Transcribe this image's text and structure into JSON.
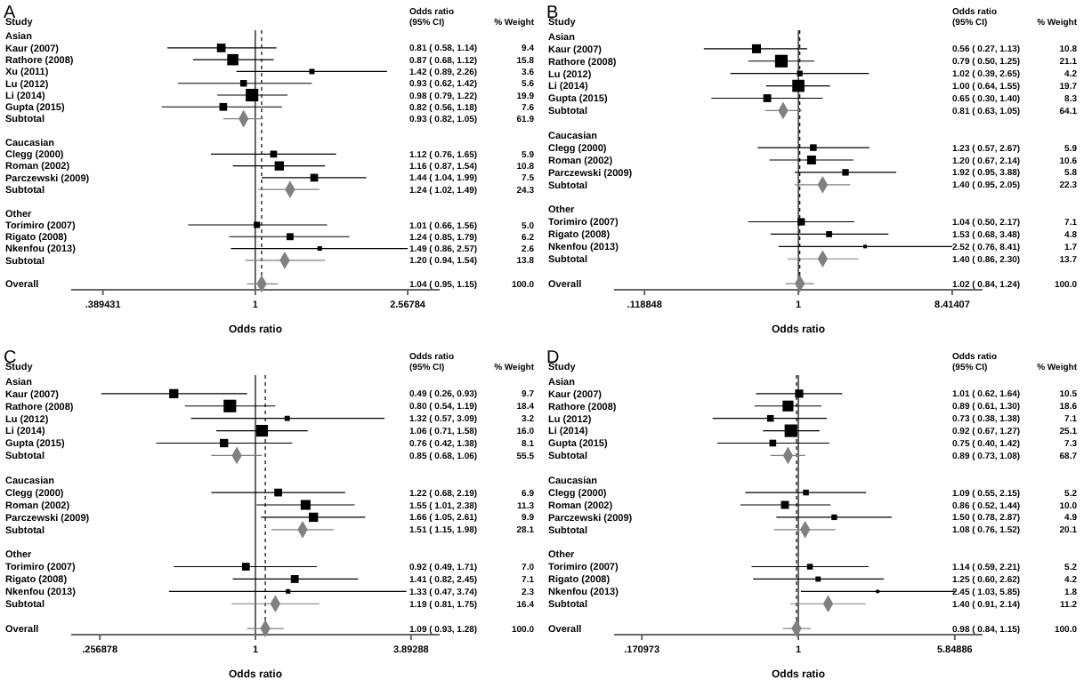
{
  "chart_data": [
    {
      "type": "bubble",
      "title": "A",
      "ylabel": "Study",
      "xlabel": "Odds ratio",
      "orientation": "horizontal",
      "log": "x",
      "xlim": [
        0.32,
        3.13
      ],
      "xticks": [
        {
          "value": 0.389431,
          "label": ".389431"
        },
        {
          "value": 1,
          "label": "1"
        },
        {
          "value": 2.56784,
          "label": "2.56784"
        }
      ],
      "annotations": [
        "Odds ratio",
        "(95% CI)",
        "% Weight"
      ],
      "ref_lines": [
        {
          "axis": "x",
          "value": 1,
          "line_style": "solid",
          "color": "#000000"
        },
        {
          "axis": "x",
          "value": 1.04,
          "line_style": "dashed",
          "color": "#000000"
        }
      ],
      "categories": [
        "Asian",
        "Kaur (2007)",
        "Rathore (2008)",
        "Xu (2011)",
        "Lu (2012)",
        "Li (2014)",
        "Gupta (2015)",
        "Subtotal",
        null,
        "Caucasian",
        "Clegg (2000)",
        "Roman (2002)",
        "Parczewski (2009)",
        "Subtotal",
        null,
        "Other",
        "Torimiro (2007)",
        "Rigato (2008)",
        "Nkenfou (2013)",
        "Subtotal",
        null,
        "Overall"
      ],
      "series": [
        {
          "marker": "square",
          "color": "#000000",
          "values": [
            null,
            0.81,
            0.87,
            1.42,
            0.93,
            0.98,
            0.82,
            null,
            null,
            null,
            1.12,
            1.16,
            1.44,
            null,
            null,
            null,
            1.01,
            1.24,
            1.49,
            null,
            null,
            null
          ],
          "errors": [
            null,
            [
              0.58,
              1.14
            ],
            [
              0.68,
              1.12
            ],
            [
              0.89,
              2.26
            ],
            [
              0.62,
              1.42
            ],
            [
              0.79,
              1.22
            ],
            [
              0.56,
              1.18
            ],
            null,
            null,
            null,
            [
              0.76,
              1.65
            ],
            [
              0.87,
              1.54
            ],
            [
              1.04,
              1.99
            ],
            null,
            null,
            null,
            [
              0.66,
              1.56
            ],
            [
              0.85,
              1.79
            ],
            [
              0.86,
              2.57
            ],
            null,
            null,
            null
          ],
          "sizes": [
            null,
            0.47,
            0.79,
            0.18,
            0.28,
            1,
            0.38,
            null,
            null,
            null,
            0.3,
            0.54,
            0.38,
            null,
            null,
            null,
            0.25,
            0.31,
            0.13,
            null,
            null,
            null
          ],
          "value_labels": [
            null,
            "0.81 ( 0.58, 1.14) 9.4",
            "0.87 ( 0.68, 1.12) 15.8",
            "1.42 ( 0.89, 2.26) 3.6",
            "0.93 ( 0.62, 1.42) 5.6",
            "0.98 ( 0.79, 1.22) 19.9",
            "0.82 ( 0.56, 1.18) 7.6",
            null,
            null,
            null,
            "1.12 ( 0.76, 1.65) 5.9",
            "1.16 ( 0.87, 1.54) 10.8",
            "1.44 ( 1.04, 1.99) 7.5",
            null,
            null,
            null,
            "1.01 ( 0.66, 1.56) 5.0",
            "1.24 ( 0.85, 1.79) 6.2",
            "1.49 ( 0.86, 2.57) 2.6",
            null,
            null,
            null
          ]
        },
        {
          "type": "scatter",
          "marker": "diamond",
          "color": "#808080",
          "values": [
            null,
            null,
            null,
            null,
            null,
            null,
            null,
            0.93,
            null,
            null,
            null,
            null,
            null,
            1.24,
            null,
            null,
            null,
            null,
            null,
            1.2,
            null,
            1.04
          ],
          "errors": [
            null,
            null,
            null,
            null,
            null,
            null,
            null,
            [
              0.82,
              1.05
            ],
            null,
            null,
            null,
            null,
            null,
            [
              1.02,
              1.49
            ],
            null,
            null,
            null,
            null,
            null,
            [
              0.94,
              1.54
            ],
            null,
            [
              0.95,
              1.15
            ]
          ],
          "value_labels": [
            null,
            null,
            null,
            null,
            null,
            null,
            null,
            "0.93 ( 0.82, 1.05) 61.9",
            null,
            null,
            null,
            null,
            null,
            "1.24 ( 1.02, 1.49) 24.3",
            null,
            null,
            null,
            null,
            null,
            "1.20 ( 0.94, 1.54) 13.8",
            null,
            "1.04 ( 0.95, 1.15) 100.0"
          ]
        }
      ]
    },
    {
      "type": "bubble",
      "title": "B",
      "ylabel": "Study",
      "xlabel": "Odds ratio",
      "orientation": "horizontal",
      "log": "x",
      "xlim": [
        0.078,
        12.8
      ],
      "xticks": [
        {
          "value": 0.118848,
          "label": ".118848"
        },
        {
          "value": 1,
          "label": "1"
        },
        {
          "value": 8.41407,
          "label": "8.41407"
        }
      ],
      "annotations": [
        "Odds ratio",
        "(95% CI)",
        "% Weight"
      ],
      "ref_lines": [
        {
          "axis": "x",
          "value": 1,
          "line_style": "solid",
          "color": "#000000"
        },
        {
          "axis": "x",
          "value": 1.02,
          "line_style": "dashed",
          "color": "#000000"
        }
      ],
      "categories": [
        "Asian",
        "Kaur (2007)",
        "Rathore (2008)",
        "Lu (2012)",
        "Li (2014)",
        "Gupta (2015)",
        "Subtotal",
        null,
        "Caucasian",
        "Clegg (2000)",
        "Roman (2002)",
        "Parczewski (2009)",
        "Subtotal",
        null,
        "Other",
        "Torimiro (2007)",
        "Rigato (2008)",
        "Nkenfou (2013)",
        "Subtotal",
        null,
        "Overall"
      ],
      "series": [
        {
          "marker": "square",
          "color": "#000000",
          "values": [
            null,
            0.56,
            0.79,
            1.02,
            1.0,
            0.65,
            null,
            null,
            null,
            1.23,
            1.2,
            1.92,
            null,
            null,
            null,
            1.04,
            1.53,
            2.52,
            null,
            null,
            null
          ],
          "errors": [
            null,
            [
              0.27,
              1.13
            ],
            [
              0.5,
              1.25
            ],
            [
              0.39,
              2.65
            ],
            [
              0.64,
              1.55
            ],
            [
              0.3,
              1.4
            ],
            null,
            null,
            null,
            [
              0.57,
              2.67
            ],
            [
              0.67,
              2.14
            ],
            [
              0.95,
              3.88
            ],
            null,
            null,
            null,
            [
              0.5,
              2.17
            ],
            [
              0.68,
              3.48
            ],
            [
              0.76,
              8.41
            ],
            null,
            null,
            null
          ],
          "sizes": [
            null,
            0.51,
            1,
            0.2,
            0.93,
            0.39,
            null,
            null,
            null,
            0.28,
            0.5,
            0.27,
            null,
            null,
            null,
            0.34,
            0.23,
            0.08,
            null,
            null,
            null
          ],
          "value_labels": [
            null,
            "0.56 ( 0.27, 1.13) 10.8",
            "0.79 ( 0.50, 1.25) 21.1",
            "1.02 ( 0.39, 2.65) 4.2",
            "1.00 ( 0.64, 1.55) 19.7",
            "0.65 ( 0.30, 1.40) 8.3",
            null,
            null,
            null,
            "1.23 ( 0.57, 2.67) 5.9",
            "1.20 ( 0.67, 2.14) 10.6",
            "1.92 ( 0.95, 3.88) 5.8",
            null,
            null,
            null,
            "1.04 ( 0.50, 2.17) 7.1",
            "1.53 ( 0.68, 3.48) 4.8",
            "2.52 ( 0.76, 8.41) 1.7",
            null,
            null,
            null
          ]
        },
        {
          "type": "scatter",
          "marker": "diamond",
          "color": "#808080",
          "values": [
            null,
            null,
            null,
            null,
            null,
            null,
            0.81,
            null,
            null,
            null,
            null,
            null,
            1.4,
            null,
            null,
            null,
            null,
            null,
            1.4,
            null,
            1.02
          ],
          "errors": [
            null,
            null,
            null,
            null,
            null,
            null,
            [
              0.63,
              1.05
            ],
            null,
            null,
            null,
            null,
            null,
            [
              0.95,
              2.05
            ],
            null,
            null,
            null,
            null,
            null,
            [
              0.86,
              2.3
            ],
            null,
            [
              0.84,
              1.24
            ]
          ],
          "value_labels": [
            null,
            null,
            null,
            null,
            null,
            null,
            "0.81 ( 0.63, 1.05) 64.1",
            null,
            null,
            null,
            null,
            null,
            "1.40 ( 0.95, 2.05) 22.3",
            null,
            null,
            null,
            null,
            null,
            "1.40 ( 0.86, 2.30) 13.7",
            null,
            "1.02 ( 0.84, 1.24) 100.0"
          ]
        }
      ]
    },
    {
      "type": "bubble",
      "title": "C",
      "ylabel": "Study",
      "xlabel": "Odds ratio",
      "orientation": "horizontal",
      "log": "x",
      "xlim": [
        0.2,
        5.0
      ],
      "xticks": [
        {
          "value": 0.256878,
          "label": ".256878"
        },
        {
          "value": 1,
          "label": "1"
        },
        {
          "value": 3.89288,
          "label": "3.89288"
        }
      ],
      "annotations": [
        "Odds ratio",
        "(95% CI)",
        "% Weight"
      ],
      "ref_lines": [
        {
          "axis": "x",
          "value": 1,
          "line_style": "solid",
          "color": "#000000"
        },
        {
          "axis": "x",
          "value": 1.09,
          "line_style": "dashed",
          "color": "#000000"
        }
      ],
      "categories": [
        "Asian",
        "Kaur (2007)",
        "Rathore (2008)",
        "Lu (2012)",
        "Li (2014)",
        "Gupta (2015)",
        "Subtotal",
        null,
        "Caucasian",
        "Clegg (2000)",
        "Roman (2002)",
        "Parczewski (2009)",
        "Subtotal",
        null,
        "Other",
        "Torimiro (2007)",
        "Rigato (2008)",
        "Nkenfou (2013)",
        "Subtotal",
        null,
        "Overall"
      ],
      "series": [
        {
          "marker": "square",
          "color": "#000000",
          "values": [
            null,
            0.49,
            0.8,
            1.32,
            1.06,
            0.76,
            null,
            null,
            null,
            1.22,
            1.55,
            1.66,
            null,
            null,
            null,
            0.92,
            1.41,
            1.33,
            null,
            null,
            null
          ],
          "errors": [
            null,
            [
              0.26,
              0.93
            ],
            [
              0.54,
              1.19
            ],
            [
              0.57,
              3.09
            ],
            [
              0.71,
              1.58
            ],
            [
              0.42,
              1.38
            ],
            null,
            null,
            null,
            [
              0.68,
              2.19
            ],
            [
              1.01,
              2.38
            ],
            [
              1.05,
              2.61
            ],
            null,
            null,
            null,
            [
              0.49,
              1.71
            ],
            [
              0.82,
              2.45
            ],
            [
              0.47,
              3.74
            ],
            null,
            null,
            null
          ],
          "sizes": [
            null,
            0.53,
            1,
            0.17,
            0.87,
            0.44,
            null,
            null,
            null,
            0.38,
            0.61,
            0.54,
            null,
            null,
            null,
            0.38,
            0.39,
            0.13,
            null,
            null,
            null
          ],
          "value_labels": [
            null,
            "0.49 ( 0.26, 0.93) 9.7",
            "0.80 ( 0.54, 1.19) 18.4",
            "1.32 ( 0.57, 3.09) 3.2",
            "1.06 ( 0.71, 1.58) 16.0",
            "0.76 ( 0.42, 1.38) 8.1",
            null,
            null,
            null,
            "1.22 ( 0.68, 2.19) 6.9",
            "1.55 ( 1.01, 2.38) 11.3",
            "1.66 ( 1.05, 2.61) 9.9",
            null,
            null,
            null,
            "0.92 ( 0.49, 1.71) 7.0",
            "1.41 ( 0.82, 2.45) 7.1",
            "1.33 ( 0.47, 3.74) 2.3",
            null,
            null,
            null
          ]
        },
        {
          "type": "scatter",
          "marker": "diamond",
          "color": "#808080",
          "values": [
            null,
            null,
            null,
            null,
            null,
            null,
            0.85,
            null,
            null,
            null,
            null,
            null,
            1.51,
            null,
            null,
            null,
            null,
            null,
            1.19,
            null,
            1.09
          ],
          "errors": [
            null,
            null,
            null,
            null,
            null,
            null,
            [
              0.68,
              1.06
            ],
            null,
            null,
            null,
            null,
            null,
            [
              1.15,
              1.98
            ],
            null,
            null,
            null,
            null,
            null,
            [
              0.81,
              1.75
            ],
            null,
            [
              0.93,
              1.28
            ]
          ],
          "value_labels": [
            null,
            null,
            null,
            null,
            null,
            null,
            "0.85 ( 0.68, 1.06) 55.5",
            null,
            null,
            null,
            null,
            null,
            "1.51 ( 1.15, 1.98) 28.1",
            null,
            null,
            null,
            null,
            null,
            "1.19 ( 0.81, 1.75) 16.4",
            null,
            "1.09 ( 0.93, 1.28) 100.0"
          ]
        }
      ]
    },
    {
      "type": "bubble",
      "title": "D",
      "ylabel": "Study",
      "xlabel": "Odds ratio",
      "orientation": "horizontal",
      "log": "x",
      "xlim": [
        0.125,
        8.0
      ],
      "xticks": [
        {
          "value": 0.170973,
          "label": ".170973"
        },
        {
          "value": 1,
          "label": "1"
        },
        {
          "value": 5.84886,
          "label": "5.84886"
        }
      ],
      "annotations": [
        "Odds ratio",
        "(95% CI)",
        "% Weight"
      ],
      "ref_lines": [
        {
          "axis": "x",
          "value": 1,
          "line_style": "solid",
          "color": "#000000"
        },
        {
          "axis": "x",
          "value": 0.98,
          "line_style": "dashed",
          "color": "#000000"
        }
      ],
      "categories": [
        "Asian",
        "Kaur (2007)",
        "Rathore (2008)",
        "Lu (2012)",
        "Li (2014)",
        "Gupta (2015)",
        "Subtotal",
        null,
        "Caucasian",
        "Clegg (2000)",
        "Roman (2002)",
        "Parczewski (2009)",
        "Subtotal",
        null,
        "Other",
        "Torimiro (2007)",
        "Rigato (2008)",
        "Nkenfou (2013)",
        "Subtotal",
        null,
        "Overall"
      ],
      "series": [
        {
          "marker": "square",
          "color": "#000000",
          "values": [
            null,
            1.01,
            0.89,
            0.73,
            0.92,
            0.75,
            null,
            null,
            null,
            1.09,
            0.86,
            1.5,
            null,
            null,
            null,
            1.14,
            1.25,
            2.45,
            null,
            null,
            null
          ],
          "errors": [
            null,
            [
              0.62,
              1.64
            ],
            [
              0.61,
              1.3
            ],
            [
              0.38,
              1.38
            ],
            [
              0.67,
              1.27
            ],
            [
              0.4,
              1.42
            ],
            null,
            null,
            null,
            [
              0.55,
              2.15
            ],
            [
              0.52,
              1.44
            ],
            [
              0.78,
              2.87
            ],
            null,
            null,
            null,
            [
              0.59,
              2.21
            ],
            [
              0.6,
              2.62
            ],
            [
              1.03,
              5.85
            ],
            null,
            null,
            null
          ],
          "sizes": [
            null,
            0.42,
            0.74,
            0.28,
            1,
            0.29,
            null,
            null,
            null,
            0.21,
            0.4,
            0.2,
            null,
            null,
            null,
            0.21,
            0.17,
            0.07,
            null,
            null,
            null
          ],
          "value_labels": [
            null,
            "1.01 ( 0.62, 1.64) 10.5",
            "0.89 ( 0.61, 1.30) 18.6",
            "0.73 ( 0.38, 1.38) 7.1",
            "0.92 ( 0.67, 1.27) 25.1",
            "0.75 ( 0.40, 1.42) 7.3",
            null,
            null,
            null,
            "1.09 ( 0.55, 2.15) 5.2",
            "0.86 ( 0.52, 1.44) 10.0",
            "1.50 ( 0.78, 2.87) 4.9",
            null,
            null,
            null,
            "1.14 ( 0.59, 2.21) 5.2",
            "1.25 ( 0.60, 2.62) 4.2",
            "2.45 ( 1.03, 5.85) 1.8",
            null,
            null,
            null
          ]
        },
        {
          "type": "scatter",
          "marker": "diamond",
          "color": "#808080",
          "values": [
            null,
            null,
            null,
            null,
            null,
            null,
            0.89,
            null,
            null,
            null,
            null,
            null,
            1.08,
            null,
            null,
            null,
            null,
            null,
            1.4,
            null,
            0.98
          ],
          "errors": [
            null,
            null,
            null,
            null,
            null,
            null,
            [
              0.73,
              1.08
            ],
            null,
            null,
            null,
            null,
            null,
            [
              0.76,
              1.52
            ],
            null,
            null,
            null,
            null,
            null,
            [
              0.91,
              2.14
            ],
            null,
            [
              0.84,
              1.15
            ]
          ],
          "value_labels": [
            null,
            null,
            null,
            null,
            null,
            null,
            "0.89 ( 0.73, 1.08) 68.7",
            null,
            null,
            null,
            null,
            null,
            "1.08 ( 0.76, 1.52) 20.1",
            null,
            null,
            null,
            null,
            null,
            "1.40 ( 0.91, 2.14) 11.2",
            null,
            "0.98 ( 0.84, 1.15) 100.0"
          ]
        }
      ]
    }
  ]
}
